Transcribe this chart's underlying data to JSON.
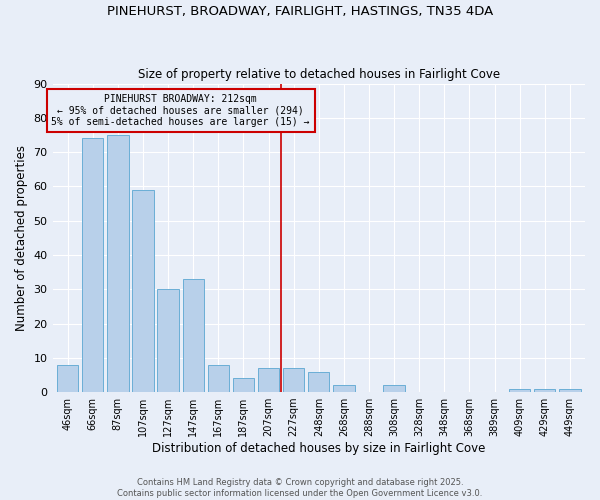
{
  "title": "PINEHURST, BROADWAY, FAIRLIGHT, HASTINGS, TN35 4DA",
  "subtitle": "Size of property relative to detached houses in Fairlight Cove",
  "xlabel": "Distribution of detached houses by size in Fairlight Cove",
  "ylabel": "Number of detached properties",
  "bar_labels": [
    "46sqm",
    "66sqm",
    "87sqm",
    "107sqm",
    "127sqm",
    "147sqm",
    "167sqm",
    "187sqm",
    "207sqm",
    "227sqm",
    "248sqm",
    "268sqm",
    "288sqm",
    "308sqm",
    "328sqm",
    "348sqm",
    "368sqm",
    "389sqm",
    "409sqm",
    "429sqm",
    "449sqm"
  ],
  "bar_values": [
    8,
    74,
    75,
    59,
    30,
    33,
    8,
    4,
    7,
    7,
    6,
    2,
    0,
    2,
    0,
    0,
    0,
    0,
    1,
    1,
    1
  ],
  "bar_color": "#b8d0ea",
  "bar_edge_color": "#6aaed6",
  "vline_x": 8.5,
  "vline_color": "#cc0000",
  "annotation_title": "PINEHURST BROADWAY: 212sqm",
  "annotation_line1": "← 95% of detached houses are smaller (294)",
  "annotation_line2": "5% of semi-detached houses are larger (15) →",
  "annotation_box_color": "#cc0000",
  "ylim": [
    0,
    90
  ],
  "yticks": [
    0,
    10,
    20,
    30,
    40,
    50,
    60,
    70,
    80,
    90
  ],
  "footer_line1": "Contains HM Land Registry data © Crown copyright and database right 2025.",
  "footer_line2": "Contains public sector information licensed under the Open Government Licence v3.0.",
  "background_color": "#e8eef8",
  "grid_color": "#ffffff"
}
